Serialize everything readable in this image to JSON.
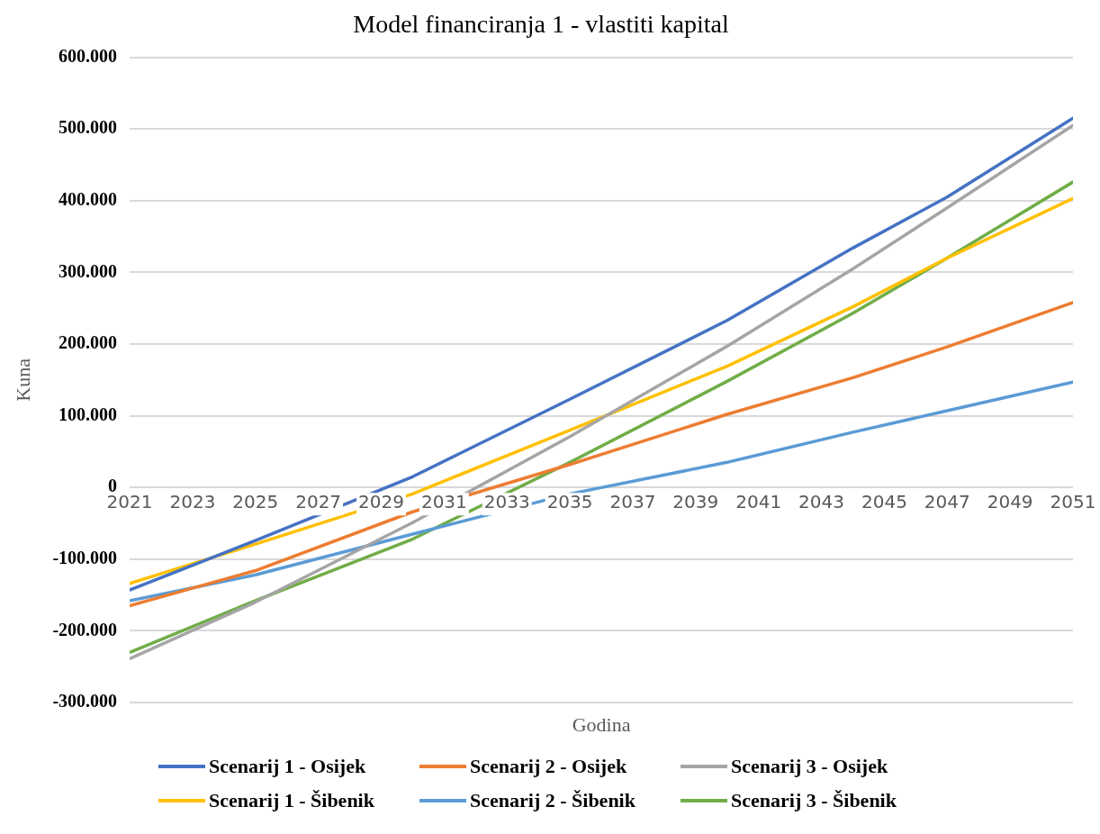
{
  "chart_data": {
    "type": "line",
    "title": "Model financiranja 1 - vlastiti kapital",
    "xlabel": "Godina",
    "ylabel": "Kuna",
    "xlim": [
      2021,
      2051
    ],
    "xticks": [
      2021,
      2023,
      2025,
      2027,
      2029,
      2031,
      2033,
      2035,
      2037,
      2039,
      2041,
      2043,
      2045,
      2047,
      2049,
      2051
    ],
    "ylim": [
      -300000,
      600000
    ],
    "yticks": [
      {
        "value": -300000,
        "label": "-300.000"
      },
      {
        "value": -200000,
        "label": "-200.000"
      },
      {
        "value": -100000,
        "label": "-100.000"
      },
      {
        "value": 0,
        "label": "0"
      },
      {
        "value": 100000,
        "label": "100.000"
      },
      {
        "value": 200000,
        "label": "200.000"
      },
      {
        "value": 300000,
        "label": "300.000"
      },
      {
        "value": 400000,
        "label": "400.000"
      },
      {
        "value": 500000,
        "label": "500.000"
      },
      {
        "value": 600000,
        "label": "600.000"
      }
    ],
    "x": [
      2021,
      2025,
      2030,
      2035,
      2040,
      2044,
      2047,
      2051
    ],
    "grid": "y",
    "legend": "bottom",
    "marker": "none",
    "line_style": "solid",
    "series": [
      {
        "name": "Scenarij 1 - Osijek",
        "color": "#4472c4",
        "values": [
          -143000,
          -74000,
          15000,
          123000,
          233000,
          334000,
          405000,
          515000
        ]
      },
      {
        "name": "Scenarij 2 - Osijek",
        "color": "#ed7d31",
        "values": [
          -165000,
          -116000,
          -34000,
          32000,
          102000,
          153000,
          196000,
          258000
        ]
      },
      {
        "name": "Scenarij 3 - Osijek",
        "color": "#a5a5a5",
        "values": [
          -239000,
          -160000,
          -49000,
          71000,
          197000,
          305000,
          390000,
          505000
        ]
      },
      {
        "name": "Scenarij 1 - Šibenik",
        "color": "#ffc000",
        "values": [
          -134000,
          -79000,
          -9000,
          80000,
          169000,
          252000,
          320000,
          403000
        ]
      },
      {
        "name": "Scenarij 2 - Šibenik",
        "color": "#5b9bd5",
        "values": [
          -158000,
          -122000,
          -65000,
          -9000,
          35000,
          77000,
          107000,
          147000
        ]
      },
      {
        "name": "Scenarij 3 - Šibenik",
        "color": "#70ad47",
        "values": [
          -230000,
          -158000,
          -72000,
          35000,
          148000,
          243000,
          320000,
          426000
        ]
      }
    ]
  }
}
